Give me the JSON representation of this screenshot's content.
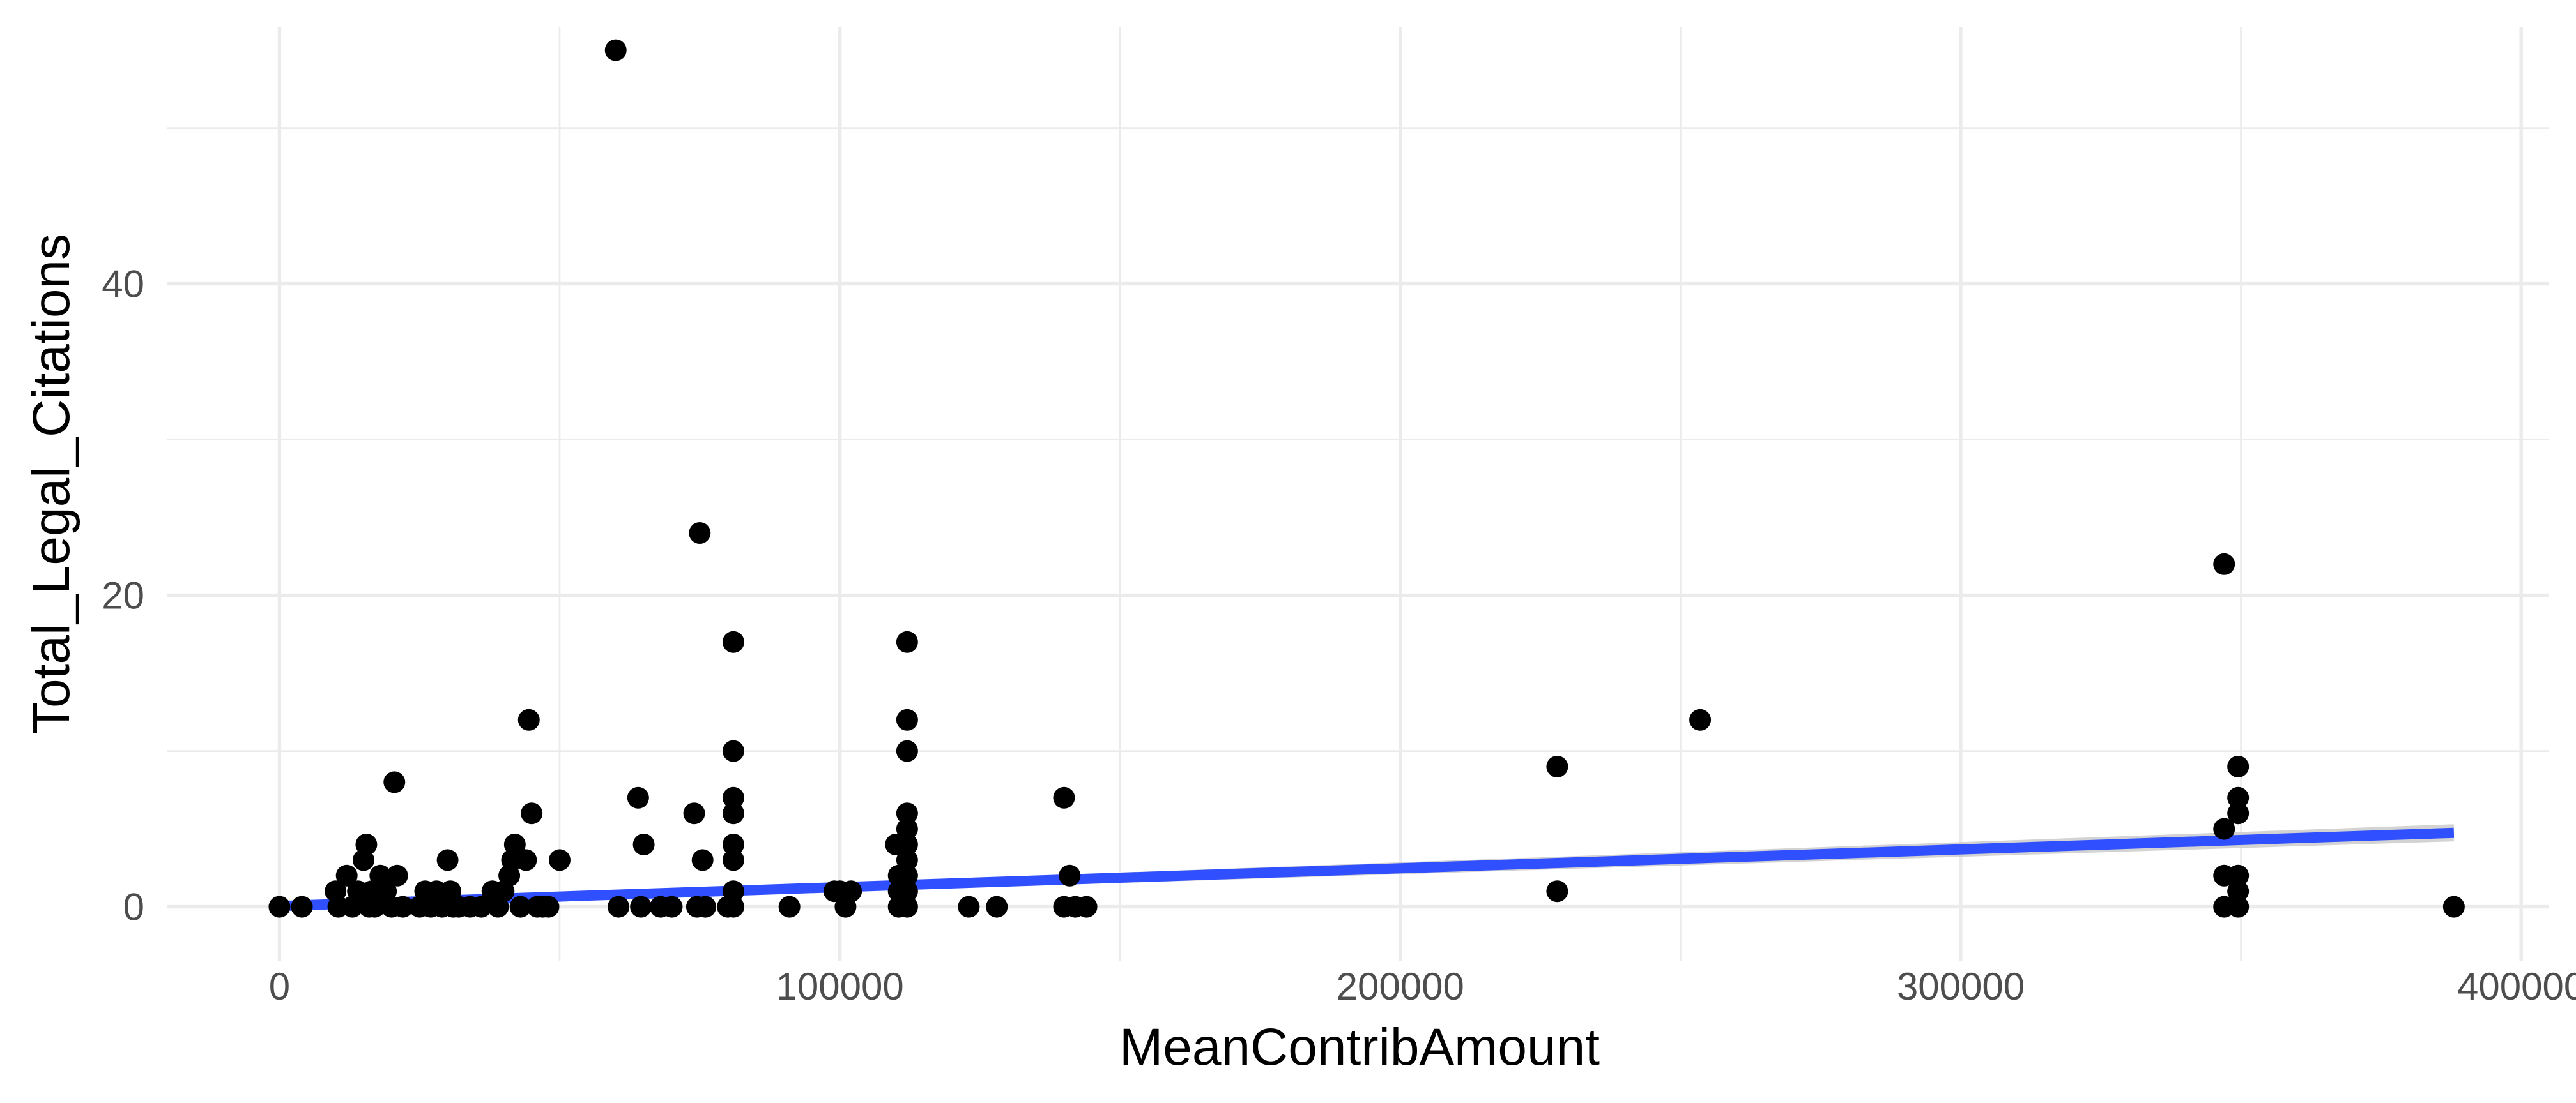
{
  "chart_data": {
    "type": "scatter",
    "title": "",
    "xlabel": "MeanContribAmount",
    "ylabel": "Total_Legal_Citations",
    "xlim": [
      -20000,
      405000
    ],
    "ylim": [
      -3.5,
      56.5
    ],
    "x_ticks": [
      0,
      100000,
      200000,
      300000,
      400000
    ],
    "x_tick_labels": [
      "0",
      "100000",
      "200000",
      "300000",
      "400000"
    ],
    "y_ticks": [
      0,
      20,
      40
    ],
    "y_tick_labels": [
      "0",
      "20",
      "40"
    ],
    "grid": true,
    "theme": "minimal",
    "point_color": "#000000",
    "points": [
      {
        "x": 0,
        "y": 0
      },
      {
        "x": 4000,
        "y": 0
      },
      {
        "x": 10000,
        "y": 1
      },
      {
        "x": 10500,
        "y": 0
      },
      {
        "x": 12000,
        "y": 2
      },
      {
        "x": 13000,
        "y": 0
      },
      {
        "x": 14000,
        "y": 1
      },
      {
        "x": 15000,
        "y": 3
      },
      {
        "x": 15500,
        "y": 4
      },
      {
        "x": 16000,
        "y": 0
      },
      {
        "x": 16500,
        "y": 1
      },
      {
        "x": 17000,
        "y": 0
      },
      {
        "x": 18000,
        "y": 2
      },
      {
        "x": 19000,
        "y": 1
      },
      {
        "x": 20000,
        "y": 0
      },
      {
        "x": 20500,
        "y": 8
      },
      {
        "x": 21000,
        "y": 2
      },
      {
        "x": 22000,
        "y": 0
      },
      {
        "x": 25000,
        "y": 0
      },
      {
        "x": 26000,
        "y": 1
      },
      {
        "x": 27000,
        "y": 0
      },
      {
        "x": 28000,
        "y": 1
      },
      {
        "x": 29000,
        "y": 0
      },
      {
        "x": 30000,
        "y": 3
      },
      {
        "x": 30500,
        "y": 1
      },
      {
        "x": 31000,
        "y": 0
      },
      {
        "x": 32000,
        "y": 0
      },
      {
        "x": 34000,
        "y": 0
      },
      {
        "x": 36000,
        "y": 0
      },
      {
        "x": 38000,
        "y": 1
      },
      {
        "x": 39000,
        "y": 0
      },
      {
        "x": 40000,
        "y": 1
      },
      {
        "x": 41000,
        "y": 2
      },
      {
        "x": 41500,
        "y": 3
      },
      {
        "x": 42000,
        "y": 4
      },
      {
        "x": 43000,
        "y": 0
      },
      {
        "x": 44000,
        "y": 3
      },
      {
        "x": 44500,
        "y": 12
      },
      {
        "x": 45000,
        "y": 6
      },
      {
        "x": 46000,
        "y": 0
      },
      {
        "x": 47000,
        "y": 0
      },
      {
        "x": 48000,
        "y": 0
      },
      {
        "x": 50000,
        "y": 3
      },
      {
        "x": 60000,
        "y": 55
      },
      {
        "x": 60500,
        "y": 0
      },
      {
        "x": 64000,
        "y": 7
      },
      {
        "x": 64500,
        "y": 0
      },
      {
        "x": 65000,
        "y": 4
      },
      {
        "x": 68000,
        "y": 0
      },
      {
        "x": 70000,
        "y": 0
      },
      {
        "x": 74000,
        "y": 6
      },
      {
        "x": 74500,
        "y": 0
      },
      {
        "x": 75000,
        "y": 24
      },
      {
        "x": 75500,
        "y": 3
      },
      {
        "x": 76000,
        "y": 0
      },
      {
        "x": 80000,
        "y": 0
      },
      {
        "x": 81000,
        "y": 17
      },
      {
        "x": 81000,
        "y": 10
      },
      {
        "x": 81000,
        "y": 7
      },
      {
        "x": 81000,
        "y": 6
      },
      {
        "x": 81000,
        "y": 4
      },
      {
        "x": 81000,
        "y": 3
      },
      {
        "x": 81000,
        "y": 1
      },
      {
        "x": 81000,
        "y": 0
      },
      {
        "x": 91000,
        "y": 0
      },
      {
        "x": 99000,
        "y": 1
      },
      {
        "x": 100000,
        "y": 1
      },
      {
        "x": 101000,
        "y": 0
      },
      {
        "x": 102000,
        "y": 1
      },
      {
        "x": 110000,
        "y": 4
      },
      {
        "x": 110500,
        "y": 2
      },
      {
        "x": 110500,
        "y": 1
      },
      {
        "x": 110500,
        "y": 0
      },
      {
        "x": 112000,
        "y": 17
      },
      {
        "x": 112000,
        "y": 12
      },
      {
        "x": 112000,
        "y": 10
      },
      {
        "x": 112000,
        "y": 6
      },
      {
        "x": 112000,
        "y": 5
      },
      {
        "x": 112000,
        "y": 4
      },
      {
        "x": 112000,
        "y": 3
      },
      {
        "x": 112000,
        "y": 2
      },
      {
        "x": 112000,
        "y": 1
      },
      {
        "x": 112000,
        "y": 0
      },
      {
        "x": 123000,
        "y": 0
      },
      {
        "x": 128000,
        "y": 0
      },
      {
        "x": 140000,
        "y": 7
      },
      {
        "x": 140000,
        "y": 0
      },
      {
        "x": 141000,
        "y": 2
      },
      {
        "x": 142000,
        "y": 0
      },
      {
        "x": 144000,
        "y": 0
      },
      {
        "x": 228000,
        "y": 9
      },
      {
        "x": 228000,
        "y": 1
      },
      {
        "x": 253500,
        "y": 12
      },
      {
        "x": 347000,
        "y": 22
      },
      {
        "x": 347000,
        "y": 5
      },
      {
        "x": 347000,
        "y": 2
      },
      {
        "x": 347000,
        "y": 0
      },
      {
        "x": 349500,
        "y": 9
      },
      {
        "x": 349500,
        "y": 7
      },
      {
        "x": 349500,
        "y": 6
      },
      {
        "x": 349500,
        "y": 2
      },
      {
        "x": 349500,
        "y": 1
      },
      {
        "x": 349500,
        "y": 0
      },
      {
        "x": 388000,
        "y": 0
      }
    ],
    "trend": {
      "method": "lm",
      "color": "#3050ff",
      "band_color": "#c8c8c8",
      "x": [
        0,
        388000
      ],
      "y": [
        0.05,
        4.75
      ],
      "band_lower": [
        -0.15,
        4.2
      ],
      "band_upper": [
        0.25,
        5.3
      ]
    }
  }
}
